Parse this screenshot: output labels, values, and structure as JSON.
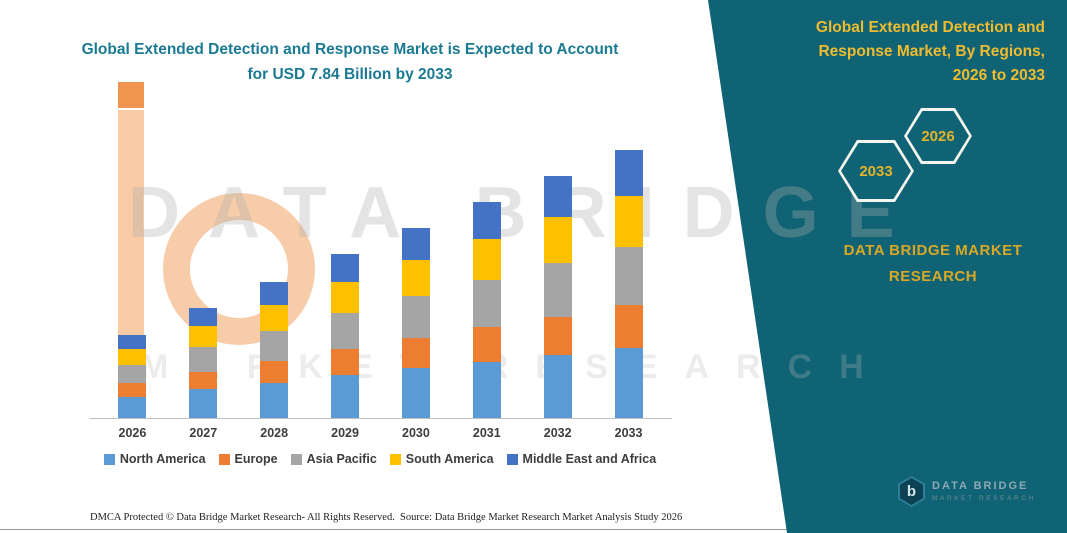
{
  "title": {
    "text": "Global Extended Detection and Response Market is Expected to Account for USD 7.84 Billion by 2033"
  },
  "side_panel": {
    "heading": "Global Extended Detection and Response Market, By Regions, 2026 to 2033",
    "hexagon_years": [
      "2033",
      "2026"
    ],
    "brand": {
      "line1": "DATA BRIDGE MARKET",
      "line2": "RESEARCH"
    },
    "background_color": "#0F6374",
    "accent_color": "#EFBC2F"
  },
  "watermark": {
    "line1": "DATA BRIDGE",
    "line2": "MARKET RESEARCH"
  },
  "logo": {
    "monogram": "b",
    "name": "DATA BRIDGE",
    "tagline": "MARKET RESEARCH"
  },
  "footer": {
    "dmca": "DMCA Protected © Data Bridge Market Research-  All Rights Reserved.",
    "source": "Source: Data Bridge Market Research  Market Analysis Study 2026"
  },
  "chart_data": {
    "type": "bar",
    "stacked": true,
    "title": "Global Extended Detection and Response Market is Expected to Account for USD 7.84 Billion by 2033",
    "categories": [
      "2026",
      "2027",
      "2028",
      "2029",
      "2030",
      "2031",
      "2032",
      "2033"
    ],
    "series": [
      {
        "name": "North America",
        "color": "#5B9BD5",
        "values": [
          0.63,
          0.84,
          1.03,
          1.25,
          1.45,
          1.64,
          1.84,
          2.04
        ]
      },
      {
        "name": "Europe",
        "color": "#ED7D31",
        "values": [
          0.39,
          0.52,
          0.64,
          0.77,
          0.89,
          1.01,
          1.13,
          1.25
        ]
      },
      {
        "name": "Asia Pacific",
        "color": "#A5A5A5",
        "values": [
          0.53,
          0.71,
          0.88,
          1.06,
          1.22,
          1.39,
          1.56,
          1.72
        ]
      },
      {
        "name": "South America",
        "color": "#FFC000",
        "values": [
          0.46,
          0.61,
          0.76,
          0.91,
          1.06,
          1.2,
          1.35,
          1.49
        ]
      },
      {
        "name": "Middle East and Africa",
        "color": "#4472C4",
        "values": [
          0.42,
          0.54,
          0.67,
          0.81,
          0.94,
          1.08,
          1.2,
          1.34
        ]
      }
    ],
    "totals": [
      2.43,
      3.22,
      3.98,
      4.8,
      5.56,
      6.32,
      7.08,
      7.84
    ],
    "ylim": [
      0,
      8
    ],
    "grid": false,
    "legend_position": "bottom",
    "unit_note_from_title": "USD Billion"
  }
}
